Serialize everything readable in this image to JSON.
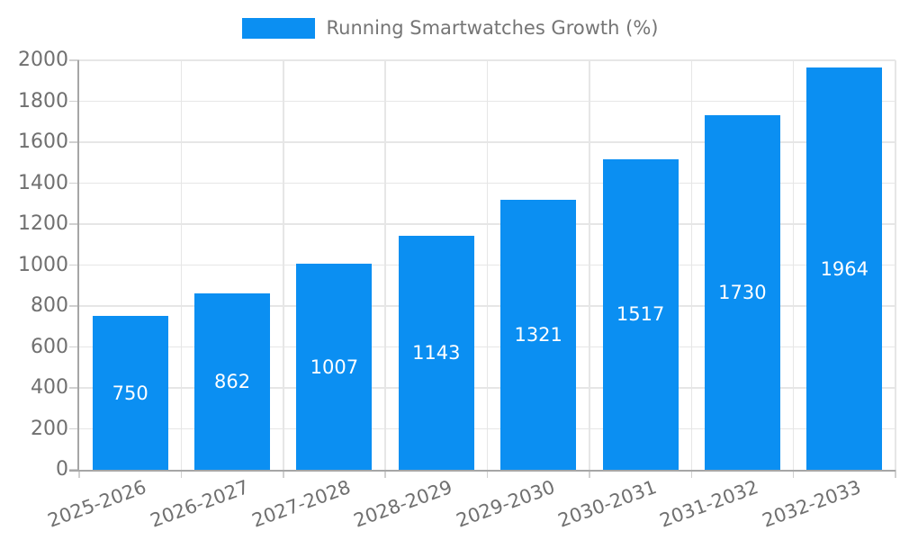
{
  "chart_data": {
    "type": "bar",
    "title": "Running Smartwatches Growth (%)",
    "legend": {
      "position": "top-center",
      "entries": [
        "Running Smartwatches Growth (%)"
      ]
    },
    "categories": [
      "2025-2026",
      "2026-2027",
      "2027-2028",
      "2028-2029",
      "2029-2030",
      "2030-2031",
      "2031-2032",
      "2032-2033"
    ],
    "values": [
      750,
      862,
      1007,
      1143,
      1321,
      1517,
      1730,
      1964
    ],
    "value_labels_shown": true,
    "xlabel": "",
    "ylabel": "",
    "ylim": [
      0,
      2000
    ],
    "yticks": [
      0,
      200,
      400,
      600,
      800,
      1000,
      1200,
      1400,
      1600,
      1800,
      2000
    ],
    "grid": true,
    "x_label_rotation_deg": -20,
    "colors": {
      "bar": "#0b8ff2",
      "value_label": "#ffffff",
      "axis_text": "#707070",
      "legend_text": "#757575",
      "gridline": "#e6e6e6",
      "axis_line": "#a6a6a6",
      "tick": "#d0d0d0",
      "background": "#ffffff"
    }
  }
}
